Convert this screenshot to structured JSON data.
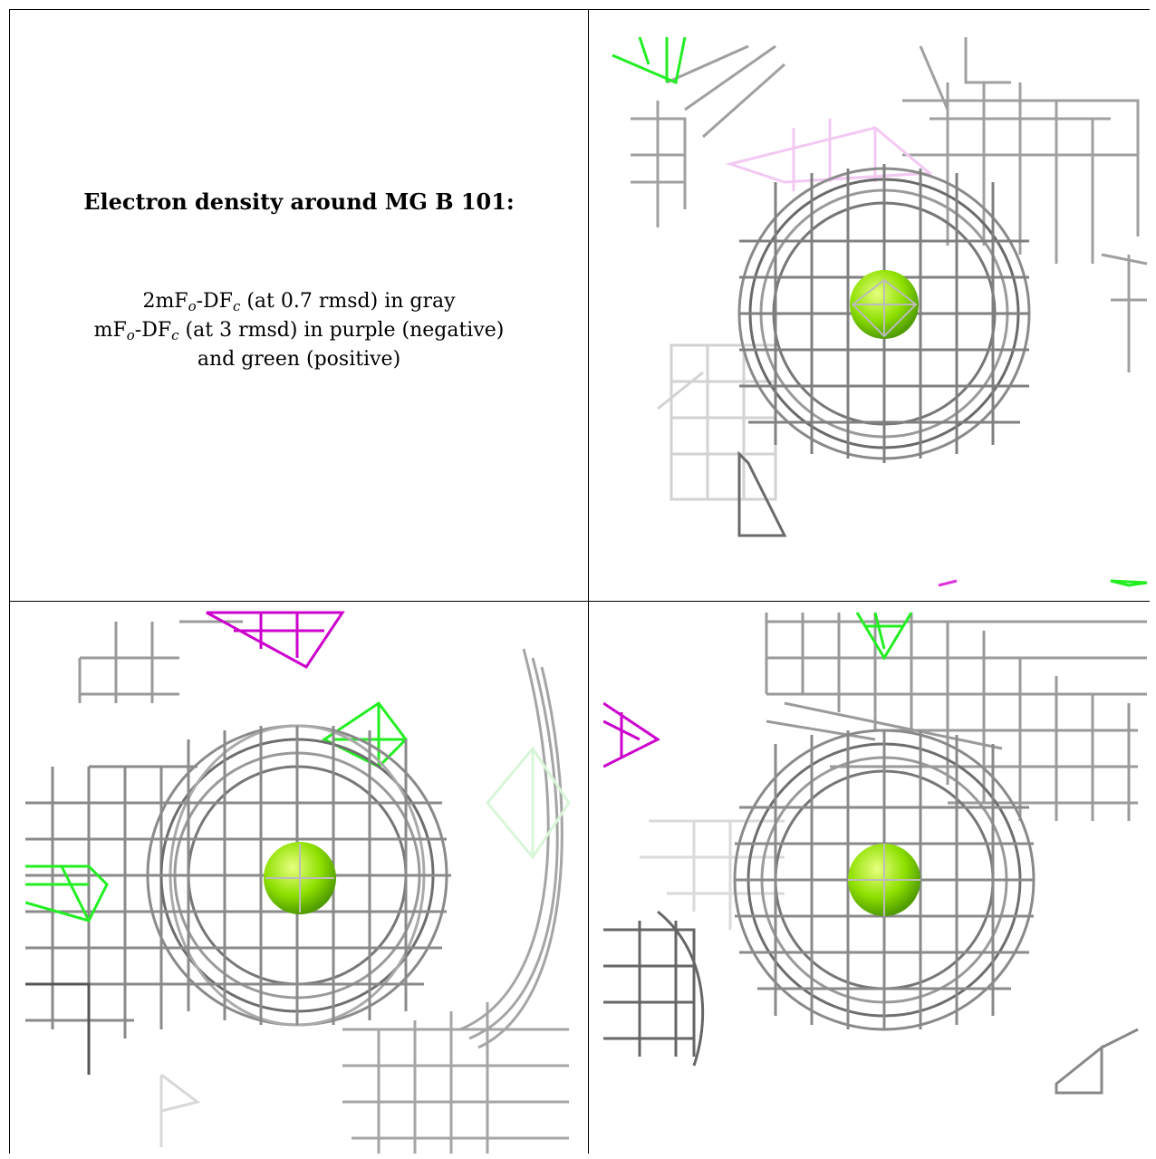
{
  "legend": {
    "heading": "Electron density around MG B 101:",
    "line1": {
      "pre": "2mF",
      "sub1": "o",
      "mid": "-DF",
      "sub2": "c",
      "post": " (at 0.7 rmsd) in gray"
    },
    "line2": {
      "pre": "mF",
      "sub1": "o",
      "mid": "-DF",
      "sub2": "c",
      "post": " (at 3 rmsd) in purple (negative)"
    },
    "line3": "and green (positive)"
  },
  "colors": {
    "map_2fofc": "#9a9a9a",
    "map_2fofc_dark": "#555555",
    "map_fofc_negative": "#cc00cc",
    "map_fofc_positive": "#22ee22",
    "ion_sphere": "#8ee000"
  },
  "views": [
    {
      "name": "view-1",
      "sphere_icon": "magnesium-ion-sphere"
    },
    {
      "name": "view-2",
      "sphere_icon": "magnesium-ion-sphere"
    },
    {
      "name": "view-3",
      "sphere_icon": "magnesium-ion-sphere"
    }
  ]
}
